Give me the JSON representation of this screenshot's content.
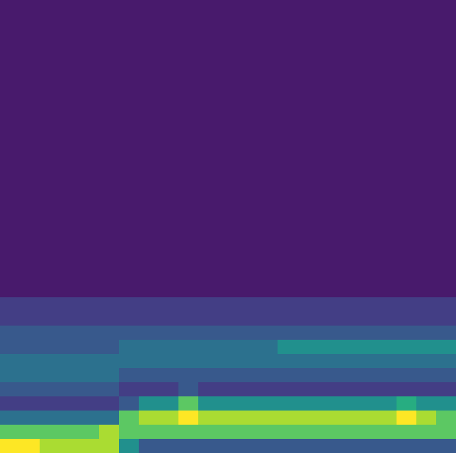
{
  "chart_data": {
    "type": "heatmap",
    "tick_labels": false,
    "zlim": [
      0,
      1
    ],
    "z": [
      [
        0,
        0,
        0,
        0,
        0,
        0,
        0,
        0,
        0,
        0,
        0,
        0,
        0,
        0,
        0,
        0,
        0,
        0,
        0,
        0,
        0,
        0,
        0
      ],
      [
        0,
        0,
        0,
        0,
        0,
        0,
        0,
        0,
        0,
        0,
        0,
        0,
        0,
        0,
        0,
        0,
        0,
        0,
        0,
        0,
        0,
        0,
        0
      ],
      [
        0,
        0,
        0,
        0,
        0,
        0,
        0,
        0,
        0,
        0,
        0,
        0,
        0,
        0,
        0,
        0,
        0,
        0,
        0,
        0,
        0,
        0,
        0
      ],
      [
        0,
        0,
        0,
        0,
        0,
        0,
        0,
        0,
        0,
        0,
        0,
        0,
        0,
        0,
        0,
        0,
        0,
        0,
        0,
        0,
        0,
        0,
        0
      ],
      [
        0,
        0,
        0,
        0,
        0,
        0,
        0,
        0,
        0,
        0,
        0,
        0,
        0,
        0,
        0,
        0,
        0,
        0,
        0,
        0,
        0,
        0,
        0
      ],
      [
        0,
        0,
        0,
        0,
        0,
        0,
        0,
        0,
        0,
        0,
        0,
        0,
        0,
        0,
        0,
        0,
        0,
        0,
        0,
        0,
        0,
        0,
        0
      ],
      [
        0,
        0,
        0,
        0,
        0,
        0,
        0,
        0,
        0,
        0,
        0,
        0,
        0,
        0,
        0,
        0,
        0,
        0,
        0,
        0,
        0,
        0,
        0
      ],
      [
        0,
        0,
        0,
        0,
        0,
        0,
        0,
        0,
        0,
        0,
        0,
        0,
        0,
        0,
        0,
        0,
        0,
        0,
        0,
        0,
        0,
        0,
        0
      ],
      [
        0,
        0,
        0,
        0,
        0,
        0,
        0,
        0,
        0,
        0,
        0,
        0,
        0,
        0,
        0,
        0,
        0,
        0,
        0,
        0,
        0,
        0,
        0
      ],
      [
        0,
        0,
        0,
        0,
        0,
        0,
        0,
        0,
        0,
        0,
        0,
        0,
        0,
        0,
        0,
        0,
        0,
        0,
        0,
        0,
        0,
        0,
        0
      ],
      [
        0,
        0,
        0,
        0,
        0,
        0,
        0,
        0,
        0,
        0,
        0,
        0,
        0,
        0,
        0,
        0,
        0,
        0,
        0,
        0,
        0,
        0,
        0
      ],
      [
        0,
        0,
        0,
        0,
        0,
        0,
        0,
        0,
        0,
        0,
        0,
        0,
        0,
        0,
        0,
        0,
        0,
        0,
        0,
        0,
        0,
        0,
        0
      ],
      [
        0.02,
        0.02,
        0.02,
        0.02,
        0.02,
        0.02,
        0.02,
        0.02,
        0.02,
        0.02,
        0.02,
        0.02,
        0.02,
        0.02,
        0.02,
        0.02,
        0.02,
        0.02,
        0.02,
        0.02,
        0.02,
        0.02,
        0.02
      ],
      [
        0.02,
        0.02,
        0.02,
        0.02,
        0.02,
        0.02,
        0.02,
        0.02,
        0.02,
        0.02,
        0.02,
        0.02,
        0.02,
        0.02,
        0.02,
        0.02,
        0.02,
        0.02,
        0.02,
        0.02,
        0.02,
        0.02,
        0.02
      ],
      [
        0.02,
        0.02,
        0.02,
        0.02,
        0.02,
        0.02,
        0.02,
        0.02,
        0.02,
        0.02,
        0.02,
        0.02,
        0.02,
        0.02,
        0.02,
        0.02,
        0.02,
        0.02,
        0.02,
        0.02,
        0.02,
        0.02,
        0.02
      ],
      [
        0,
        0,
        0,
        0,
        0,
        0,
        0,
        0,
        0,
        0,
        0,
        0,
        0,
        0,
        0,
        0,
        0,
        0,
        0,
        0,
        0,
        0,
        0
      ],
      [
        0,
        0,
        0,
        0,
        0,
        0,
        0,
        0,
        0,
        0,
        0,
        0,
        0,
        0,
        0,
        0,
        0,
        0,
        0,
        0,
        0,
        0,
        0
      ],
      [
        0,
        0,
        0,
        0,
        0,
        0,
        0,
        0,
        0,
        0,
        0,
        0,
        0,
        0,
        0,
        0,
        0,
        0,
        0,
        0,
        0,
        0,
        0
      ],
      [
        0,
        0,
        0,
        0,
        0,
        0,
        0,
        0,
        0,
        0,
        0,
        0,
        0,
        0,
        0,
        0,
        0,
        0,
        0,
        0,
        0,
        0,
        0
      ],
      [
        0,
        0,
        0,
        0,
        0,
        0,
        0,
        0,
        0,
        0,
        0,
        0,
        0,
        0,
        0,
        0,
        0,
        0,
        0,
        0,
        0,
        0,
        0
      ],
      [
        0,
        0,
        0,
        0,
        0,
        0,
        0,
        0,
        0,
        0,
        0,
        0,
        0,
        0,
        0,
        0,
        0,
        0,
        0,
        0,
        0,
        0,
        0
      ],
      [
        0.08,
        0.08,
        0.08,
        0.08,
        0.08,
        0.08,
        0.08,
        0.08,
        0.08,
        0.08,
        0.08,
        0.08,
        0.08,
        0.08,
        0.08,
        0.08,
        0.08,
        0.08,
        0.08,
        0.08,
        0.08,
        0.08,
        0.08
      ],
      [
        0.12,
        0.12,
        0.12,
        0.12,
        0.12,
        0.12,
        0.12,
        0.12,
        0.12,
        0.12,
        0.12,
        0.12,
        0.12,
        0.12,
        0.12,
        0.12,
        0.12,
        0.12,
        0.12,
        0.12,
        0.12,
        0.12,
        0.12
      ],
      [
        0.15,
        0.15,
        0.15,
        0.15,
        0.15,
        0.15,
        0.18,
        0.18,
        0.18,
        0.18,
        0.18,
        0.18,
        0.18,
        0.18,
        0.22,
        0.22,
        0.22,
        0.22,
        0.22,
        0.22,
        0.22,
        0.22,
        0.22
      ],
      [
        0.18,
        0.18,
        0.18,
        0.18,
        0.18,
        0.18,
        0.28,
        0.28,
        0.28,
        0.28,
        0.28,
        0.28,
        0.28,
        0.28,
        0.35,
        0.35,
        0.35,
        0.35,
        0.35,
        0.35,
        0.35,
        0.35,
        0.35
      ],
      [
        0.25,
        0.25,
        0.25,
        0.25,
        0.25,
        0.25,
        0.33,
        0.33,
        0.33,
        0.33,
        0.33,
        0.33,
        0.33,
        0.33,
        0.3,
        0.3,
        0.3,
        0.3,
        0.3,
        0.3,
        0.3,
        0.3,
        0.3
      ],
      [
        0.33,
        0.33,
        0.33,
        0.33,
        0.33,
        0.33,
        0.22,
        0.22,
        0.22,
        0.22,
        0.22,
        0.22,
        0.22,
        0.22,
        0.15,
        0.15,
        0.15,
        0.15,
        0.15,
        0.15,
        0.15,
        0.15,
        0.15
      ],
      [
        0.15,
        0.15,
        0.15,
        0.15,
        0.15,
        0.15,
        0.05,
        0.05,
        0.05,
        0.15,
        0.05,
        0.05,
        0.05,
        0.05,
        0.05,
        0.05,
        0.05,
        0.05,
        0.05,
        0.05,
        0.05,
        0.05,
        0.05
      ],
      [
        0.05,
        0.05,
        0.05,
        0.05,
        0.05,
        0.05,
        0.2,
        0.4,
        0.4,
        0.55,
        0.4,
        0.4,
        0.4,
        0.4,
        0.4,
        0.4,
        0.4,
        0.4,
        0.4,
        0.4,
        0.5,
        0.4,
        0.4
      ],
      [
        0.3,
        0.3,
        0.3,
        0.3,
        0.3,
        0.3,
        0.55,
        0.65,
        0.65,
        0.9,
        0.65,
        0.65,
        0.65,
        0.65,
        0.75,
        0.75,
        0.65,
        0.65,
        0.65,
        0.65,
        0.85,
        0.65,
        0.55
      ],
      [
        0.6,
        0.6,
        0.6,
        0.6,
        0.6,
        0.75,
        0.55,
        0.55,
        0.55,
        0.55,
        0.55,
        0.55,
        0.55,
        0.55,
        0.55,
        0.55,
        0.55,
        0.55,
        0.55,
        0.55,
        0.55,
        0.55,
        0.55
      ],
      [
        0.8,
        0.8,
        0.65,
        0.65,
        0.65,
        0.65,
        0.4,
        0.2,
        0.2,
        0.2,
        0.2,
        0.2,
        0.2,
        0.2,
        0.2,
        0.2,
        0.2,
        0.2,
        0.2,
        0.2,
        0.2,
        0.2,
        0.2
      ]
    ]
  }
}
